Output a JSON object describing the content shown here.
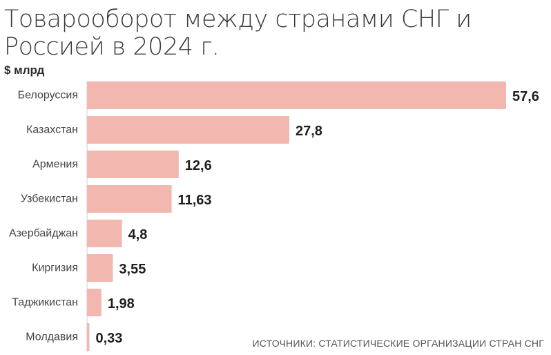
{
  "title": "Товарооборот между странами СНГ и Россией в 2024 г.",
  "unit_label": "$ млрд",
  "source": "ИСТОЧНИКИ: СТАТИСТИЧЕСКИЕ ОРГАНИЗАЦИИ СТРАН СНГ",
  "colors": {
    "bar": "#f2b7ae",
    "axis": "#cfcfcf",
    "label": "#444444",
    "value": "#1f1f1f"
  },
  "chart_data": {
    "type": "bar",
    "orientation": "horizontal",
    "categories": [
      "Белоруссия",
      "Казахстан",
      "Армения",
      "Узбекистан",
      "Азербайджан",
      "Киргизия",
      "Таджикистан",
      "Молдавия"
    ],
    "values": [
      57.6,
      27.8,
      12.6,
      11.63,
      4.8,
      3.55,
      1.98,
      0.33
    ],
    "value_labels": [
      "57,6",
      "27,8",
      "12,6",
      "11,63",
      "4,8",
      "3,55",
      "1,98",
      "0,33"
    ],
    "title": "Товарооборот между странами СНГ и Россией в 2024 г.",
    "xlabel": "",
    "ylabel": "$ млрд",
    "xlim": [
      0,
      57.6
    ],
    "grid": false,
    "legend": "none"
  }
}
